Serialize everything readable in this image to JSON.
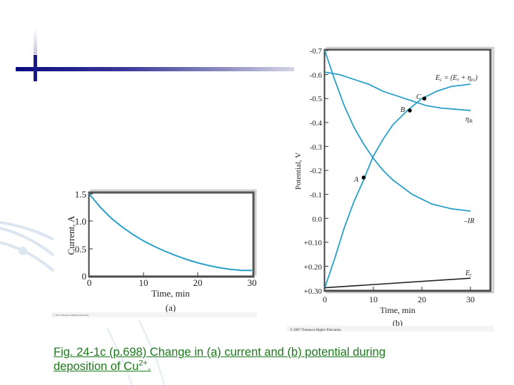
{
  "slide": {
    "caption_main": "Fig. 24-1c (p.698) Change in (a) current and (b) potential during deposition of Cu",
    "caption_sup": "2+",
    "caption_end": ".",
    "accent_color": "#1b7a1b",
    "decor_bar_color": "#1a1a8a"
  },
  "panel_a": {
    "label": "(a)",
    "copyright": "© 2007 Thomson Higher Education"
  },
  "panel_b": {
    "label": "(b)",
    "copyright": "© 2007 Thomson Higher Education"
  },
  "chart_data": [
    {
      "type": "line",
      "title": "(a)",
      "xlabel": "Time, min",
      "ylabel": "Current, A",
      "xlim": [
        0,
        30
      ],
      "ylim": [
        0,
        1.5
      ],
      "xticks": [
        "0",
        "10",
        "20",
        "30"
      ],
      "yticks": [
        "0",
        "0.5",
        "1.0",
        "1.5"
      ],
      "grid": false,
      "series": [
        {
          "name": "Current",
          "color": "#2aa0c8",
          "x": [
            0,
            2,
            4,
            6,
            8,
            10,
            12,
            14,
            16,
            18,
            20,
            22,
            24,
            26,
            28,
            30
          ],
          "y": [
            1.5,
            1.26,
            1.06,
            0.9,
            0.76,
            0.64,
            0.54,
            0.45,
            0.37,
            0.3,
            0.24,
            0.19,
            0.15,
            0.12,
            0.1,
            0.1
          ]
        }
      ]
    },
    {
      "type": "line",
      "title": "(b)",
      "xlabel": "Time, min",
      "ylabel": "Potential, V",
      "xlim": [
        0,
        30
      ],
      "ylim": [
        0.3,
        -0.7
      ],
      "xticks": [
        "0",
        "10",
        "20",
        "30"
      ],
      "yticks": [
        "-0.7",
        "-0.6",
        "-0.5",
        "-0.4",
        "-0.3",
        "-0.2",
        "-0.1",
        "0.0",
        "+0.10",
        "+0.20",
        "+0.30"
      ],
      "grid": false,
      "series": [
        {
          "name": "Ec = (Er + ηrc)",
          "color": "#2aa0c8",
          "x": [
            0,
            2,
            4,
            6,
            8,
            10,
            12,
            14,
            17,
            20,
            23,
            26,
            30
          ],
          "y": [
            0.29,
            0.17,
            0.04,
            -0.07,
            -0.16,
            -0.26,
            -0.33,
            -0.39,
            -0.45,
            -0.5,
            -0.53,
            -0.55,
            -0.56
          ]
        },
        {
          "name": "ηlk",
          "color": "#2aa0c8",
          "x": [
            0,
            3,
            6,
            9,
            12,
            15,
            18,
            21,
            24,
            27,
            30
          ],
          "y": [
            -0.61,
            -0.6,
            -0.58,
            -0.56,
            -0.53,
            -0.51,
            -0.49,
            -0.47,
            -0.46,
            -0.455,
            -0.45
          ]
        },
        {
          "name": "-IR",
          "color": "#2aa0c8",
          "x": [
            0,
            2,
            4,
            6,
            8,
            10,
            12,
            14,
            16,
            18,
            20,
            22,
            24,
            26,
            28,
            30
          ],
          "y": [
            -0.7,
            -0.58,
            -0.47,
            -0.38,
            -0.31,
            -0.25,
            -0.2,
            -0.16,
            -0.13,
            -0.1,
            -0.08,
            -0.06,
            -0.05,
            -0.04,
            -0.035,
            -0.03
          ]
        },
        {
          "name": "Er",
          "color": "#222222",
          "x": [
            0,
            30
          ],
          "y": [
            0.29,
            0.25
          ]
        }
      ],
      "annotations": [
        {
          "label": "A",
          "x": 8,
          "y": -0.17
        },
        {
          "label": "B",
          "x": 17.5,
          "y": -0.45
        },
        {
          "label": "C",
          "x": 20.5,
          "y": -0.5
        },
        {
          "label": "Ec = (Er + ηrc)",
          "x": 30,
          "y": -0.6
        },
        {
          "label": "ηlk",
          "x": 30,
          "y": -0.42
        },
        {
          "label": "-IR",
          "x": 30,
          "y": 0.0
        },
        {
          "label": "Er",
          "x": 30,
          "y": 0.22
        }
      ]
    }
  ]
}
